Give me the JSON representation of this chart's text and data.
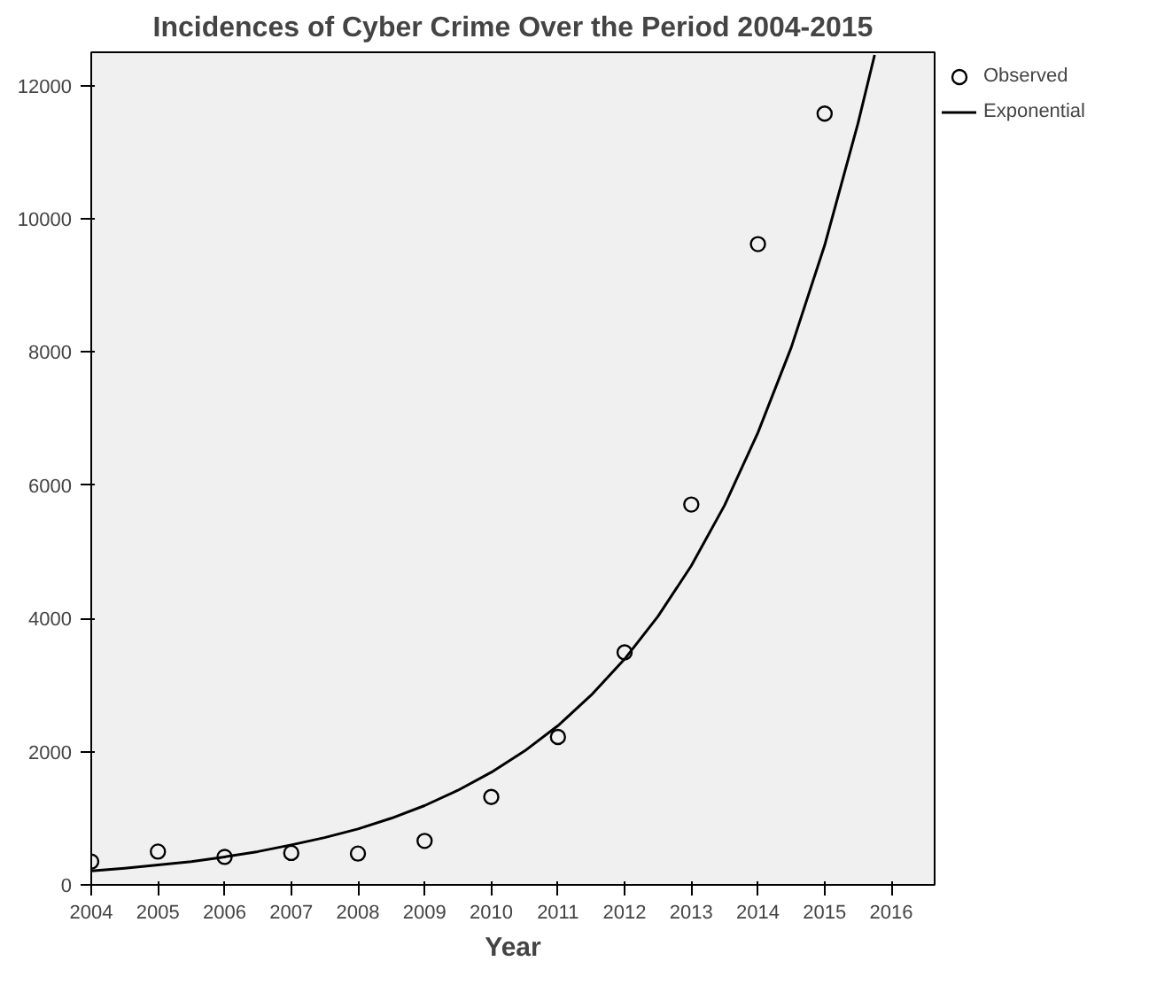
{
  "chart_data": {
    "type": "scatter",
    "title": "Incidences of Cyber Crime Over the Period 2004-2015",
    "xlabel": "Year",
    "xlim": [
      2004,
      2016.65
    ],
    "ylim": [
      0,
      12500
    ],
    "xticks": [
      2004,
      2005,
      2006,
      2007,
      2008,
      2009,
      2010,
      2011,
      2012,
      2013,
      2014,
      2015,
      2016
    ],
    "yticks": [
      0,
      2000,
      4000,
      6000,
      8000,
      10000,
      12000
    ],
    "grid": false,
    "legend": "top right",
    "series": [
      {
        "name": "Observed",
        "marker": "circle",
        "color": "#000000",
        "x": [
          2004,
          2005,
          2006,
          2007,
          2008,
          2009,
          2010,
          2011,
          2012,
          2013,
          2014,
          2015
        ],
        "values": [
          350,
          500,
          420,
          480,
          470,
          660,
          1320,
          2220,
          3490,
          5710,
          9620,
          11580
        ]
      },
      {
        "name": "Exponential",
        "type": "line",
        "marker": "none",
        "line_style": "solid",
        "color": "#000000",
        "x": [
          2004,
          2004.5,
          2005,
          2005.5,
          2006,
          2006.5,
          2007,
          2007.5,
          2008,
          2008.5,
          2009,
          2009.5,
          2010,
          2010.5,
          2011,
          2011.5,
          2012,
          2012.5,
          2013,
          2013.5,
          2014,
          2014.5,
          2015,
          2015.5,
          2015.75
        ],
        "values": [
          210,
          250,
          300,
          350,
          420,
          500,
          600,
          710,
          840,
          1000,
          1190,
          1420,
          1690,
          2010,
          2390,
          2850,
          3390,
          4030,
          4790,
          5700,
          6790,
          8070,
          9600,
          11430,
          12460
        ]
      }
    ]
  }
}
